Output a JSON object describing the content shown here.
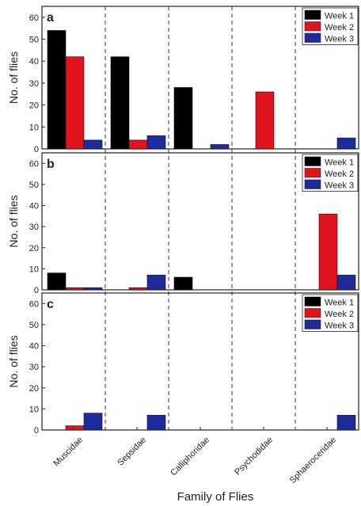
{
  "chart_data": {
    "type": "bar",
    "categories": [
      "Muscidae",
      "Sepsidae",
      "Calliphoridae",
      "Psychodidae",
      "Sphaeroceridae"
    ],
    "xlabel": "Family of Flies",
    "ylim": [
      0,
      65
    ],
    "yticks": [
      0,
      10,
      20,
      30,
      40,
      50,
      60
    ],
    "legend_position": "top-right",
    "colors": {
      "Week 1": "#000000",
      "Week 2": "#e0141c",
      "Week 3": "#1f2a9c"
    },
    "panels": [
      {
        "label": "a",
        "ylabel": "No. of flies",
        "series": [
          {
            "name": "Week 1",
            "values": [
              54,
              42,
              28,
              0,
              0
            ]
          },
          {
            "name": "Week 2",
            "values": [
              42,
              4,
              0,
              26,
              0
            ]
          },
          {
            "name": "Week 3",
            "values": [
              4,
              6,
              2,
              0,
              5
            ]
          }
        ]
      },
      {
        "label": "b",
        "ylabel": "No. of flies",
        "series": [
          {
            "name": "Week 1",
            "values": [
              8,
              0,
              6,
              0,
              0
            ]
          },
          {
            "name": "Week 2",
            "values": [
              1,
              1,
              0,
              0,
              36
            ]
          },
          {
            "name": "Week 3",
            "values": [
              1,
              7,
              0,
              0,
              7
            ]
          }
        ]
      },
      {
        "label": "c",
        "ylabel": "No. of flies",
        "series": [
          {
            "name": "Week 1",
            "values": [
              0,
              0,
              0,
              0,
              0
            ]
          },
          {
            "name": "Week 2",
            "values": [
              2,
              0,
              0,
              0,
              0
            ]
          },
          {
            "name": "Week 3",
            "values": [
              8,
              7,
              0,
              0,
              7
            ]
          }
        ]
      }
    ]
  }
}
